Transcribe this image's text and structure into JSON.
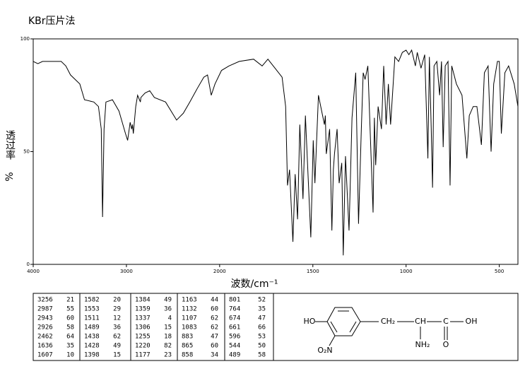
{
  "chart_data": {
    "type": "line",
    "title": "KBr压片法",
    "xlabel": "波数/cm⁻¹",
    "ylabel": "透过率",
    "yunit": "%",
    "color": "#000000",
    "xlim": [
      4000,
      400
    ],
    "ylim": [
      0,
      100
    ],
    "xscale": {
      "break": 2000,
      "ratio": 2
    },
    "xticks": [
      4000,
      3000,
      2000,
      1500,
      1000,
      500
    ],
    "yticks": [
      0,
      50,
      100
    ],
    "x": [
      4000,
      3950,
      3900,
      3800,
      3700,
      3650,
      3600,
      3500,
      3450,
      3350,
      3300,
      3270,
      3256,
      3240,
      3220,
      3150,
      3080,
      3010,
      2987,
      2960,
      2943,
      2935,
      2926,
      2900,
      2880,
      2850,
      2845,
      2800,
      2750,
      2700,
      2580,
      2462,
      2390,
      2320,
      2240,
      2170,
      2130,
      2090,
      2050,
      1990,
      1950,
      1895,
      1818,
      1772,
      1741,
      1703,
      1665,
      1646,
      1636,
      1625,
      1607,
      1595,
      1582,
      1570,
      1553,
      1540,
      1511,
      1498,
      1489,
      1470,
      1438,
      1433,
      1428,
      1410,
      1398,
      1390,
      1384,
      1370,
      1359,
      1345,
      1337,
      1325,
      1306,
      1290,
      1270,
      1255,
      1240,
      1230,
      1220,
      1205,
      1177,
      1170,
      1163,
      1150,
      1132,
      1120,
      1107,
      1095,
      1083,
      1060,
      1040,
      1020,
      1000,
      985,
      970,
      950,
      940,
      920,
      900,
      883,
      875,
      865,
      858,
      850,
      835,
      820,
      810,
      801,
      790,
      775,
      764,
      755,
      730,
      700,
      674,
      665,
      661,
      640,
      620,
      596,
      580,
      560,
      544,
      530,
      510,
      500,
      489,
      470,
      450,
      420,
      400
    ],
    "values": [
      90,
      89,
      90,
      90,
      90,
      88,
      84,
      80,
      73,
      72,
      70,
      60,
      21,
      60,
      72,
      73,
      68,
      58,
      55,
      63,
      60,
      62,
      58,
      70,
      75,
      72,
      74,
      76,
      77,
      74,
      72,
      64,
      67,
      72,
      78,
      83,
      84,
      75,
      80,
      86,
      88,
      90,
      91,
      88,
      91,
      87,
      83,
      70,
      35,
      42,
      10,
      40,
      20,
      62,
      29,
      66,
      12,
      55,
      36,
      75,
      62,
      66,
      49,
      60,
      15,
      42,
      49,
      60,
      36,
      45,
      4,
      48,
      15,
      65,
      85,
      18,
      60,
      85,
      82,
      88,
      23,
      65,
      44,
      70,
      60,
      88,
      62,
      80,
      62,
      92,
      90,
      94,
      95,
      93,
      95,
      88,
      94,
      87,
      93,
      47,
      92,
      60,
      34,
      88,
      90,
      75,
      90,
      52,
      88,
      90,
      35,
      88,
      80,
      75,
      47,
      60,
      66,
      70,
      70,
      53,
      85,
      88,
      50,
      80,
      90,
      90,
      58,
      85,
      88,
      80,
      70
    ]
  },
  "peak_table": {
    "wavenumbers": [
      3256,
      2987,
      2943,
      2926,
      2462,
      1636,
      1607,
      1582,
      1553,
      1511,
      1489,
      1438,
      1428,
      1398,
      1384,
      1359,
      1337,
      1306,
      1255,
      1220,
      1177,
      1163,
      1132,
      1107,
      1083,
      883,
      865,
      858,
      801,
      764,
      674,
      661,
      596,
      544,
      489
    ],
    "transmittance": [
      21,
      55,
      60,
      58,
      64,
      35,
      10,
      20,
      29,
      12,
      36,
      62,
      49,
      15,
      49,
      36,
      4,
      15,
      18,
      82,
      23,
      44,
      60,
      62,
      62,
      47,
      60,
      34,
      52,
      35,
      47,
      66,
      53,
      50,
      58
    ]
  },
  "molecule": {
    "labels": [
      "HO",
      "CH₂",
      "CH",
      "C",
      "OH",
      "NH₂",
      "O",
      "O₂N"
    ]
  }
}
